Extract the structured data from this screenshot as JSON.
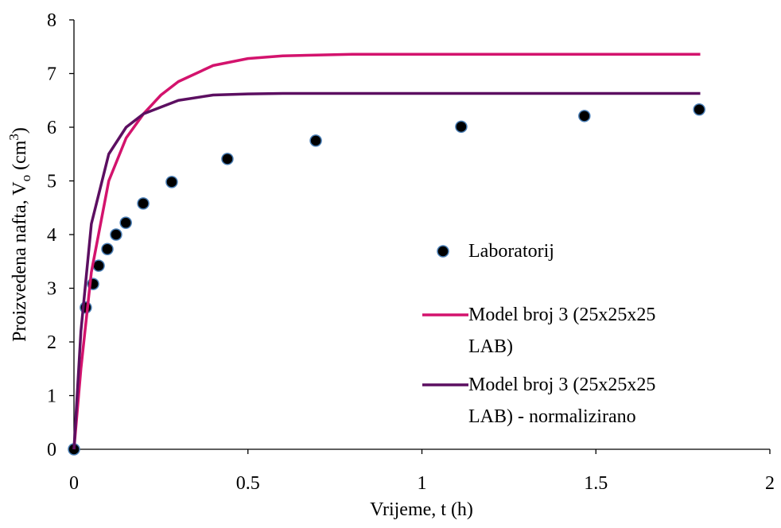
{
  "chart_data": {
    "type": "scatter-line",
    "x_label": "Vrijeme, t (h)",
    "y_label": [
      "Proizvedena nafta, V",
      "o",
      " (cm",
      "3",
      ")"
    ],
    "xlim": [
      0,
      2
    ],
    "xticks": [
      0,
      0.5,
      1,
      1.5,
      2
    ],
    "ylim": [
      0,
      8
    ],
    "yticks": [
      0,
      1,
      2,
      3,
      4,
      5,
      6,
      7,
      8
    ],
    "grid": false,
    "legend_position": "right",
    "series": [
      {
        "name": "Laboratorij",
        "kind": "scatter",
        "color": "#000000",
        "x": [
          0,
          0.034,
          0.055,
          0.071,
          0.096,
          0.121,
          0.149,
          0.199,
          0.281,
          0.441,
          0.695,
          1.113,
          1.467,
          1.797
        ],
        "values": [
          0,
          2.64,
          3.08,
          3.42,
          3.73,
          4.0,
          4.22,
          4.58,
          4.98,
          5.41,
          5.75,
          6.01,
          6.21,
          6.33
        ]
      },
      {
        "name": "Model broj 3 (25x25x25 LAB)",
        "kind": "line",
        "color": "#d3136d",
        "x": [
          0,
          0.02,
          0.05,
          0.1,
          0.15,
          0.2,
          0.25,
          0.3,
          0.4,
          0.5,
          0.6,
          0.8,
          1.0,
          1.8
        ],
        "values": [
          0,
          1.5,
          3.3,
          5.0,
          5.8,
          6.25,
          6.6,
          6.85,
          7.15,
          7.28,
          7.33,
          7.36,
          7.36,
          7.36
        ]
      },
      {
        "name": "Model broj 3 (25x25x25 LAB) - normalizirano",
        "kind": "line",
        "color": "#5c0f61",
        "x": [
          0,
          0.02,
          0.05,
          0.1,
          0.15,
          0.2,
          0.3,
          0.4,
          0.5,
          0.6,
          1.0,
          1.8
        ],
        "values": [
          0,
          2.2,
          4.2,
          5.5,
          6.0,
          6.25,
          6.5,
          6.6,
          6.62,
          6.63,
          6.63,
          6.63
        ]
      }
    ]
  }
}
